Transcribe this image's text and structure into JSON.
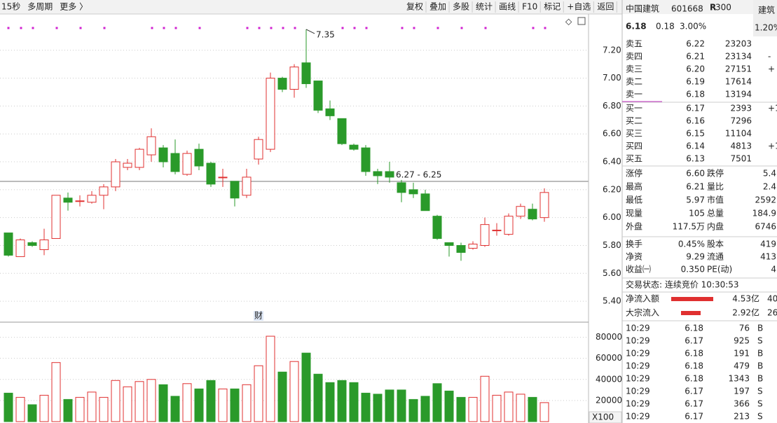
{
  "toolbar": {
    "left": [
      "15秒",
      "多周期",
      "更多 〉"
    ],
    "right": [
      "复权",
      "叠加",
      "多股",
      "统计",
      "画线",
      "F10",
      "标记",
      "+自选",
      "返回"
    ]
  },
  "chart": {
    "type": "candlestick",
    "high_label": 7.35,
    "range_label": "6.27 - 6.25",
    "marker": "财",
    "volume_unit": "X100",
    "ylim": [
      5.26,
      7.45
    ],
    "yticks": [
      {
        "value": 7.2,
        "label": "7.20"
      },
      {
        "value": 7.0,
        "label": "7.00"
      },
      {
        "value": 6.8,
        "label": "6.80"
      },
      {
        "value": 6.6,
        "label": "6.60"
      },
      {
        "value": 6.4,
        "label": "6.40"
      },
      {
        "value": 6.2,
        "label": "6.20"
      },
      {
        "value": 6.0,
        "label": "6.00"
      },
      {
        "value": 5.8,
        "label": "5.80"
      },
      {
        "value": 5.6,
        "label": "5.60"
      },
      {
        "value": 5.4,
        "label": "5.40"
      }
    ],
    "vlim": [
      0,
      93000
    ],
    "vticks": [
      80000,
      60000,
      40000,
      20000
    ],
    "candles": [
      [
        5.89,
        5.89,
        5.72,
        5.73,
        27000
      ],
      [
        5.72,
        5.85,
        5.72,
        5.84,
        23000
      ],
      [
        5.82,
        5.83,
        5.79,
        5.8,
        16000
      ],
      [
        5.77,
        5.92,
        5.73,
        5.84,
        25000
      ],
      [
        5.85,
        6.16,
        5.85,
        6.16,
        56000
      ],
      [
        6.14,
        6.18,
        6.05,
        6.11,
        21000
      ],
      [
        6.12,
        6.16,
        6.08,
        6.12,
        23000
      ],
      [
        6.11,
        6.19,
        6.1,
        6.16,
        28000
      ],
      [
        6.16,
        6.24,
        6.06,
        6.22,
        23000
      ],
      [
        6.22,
        6.42,
        6.19,
        6.4,
        39000
      ],
      [
        6.36,
        6.42,
        6.34,
        6.39,
        33000
      ],
      [
        6.36,
        6.5,
        6.34,
        6.49,
        38000
      ],
      [
        6.45,
        6.64,
        6.4,
        6.58,
        40000
      ],
      [
        6.5,
        6.52,
        6.36,
        6.4,
        35000
      ],
      [
        6.46,
        6.56,
        6.31,
        6.33,
        24000
      ],
      [
        6.31,
        6.48,
        6.3,
        6.46,
        36000
      ],
      [
        6.49,
        6.53,
        6.34,
        6.37,
        31000
      ],
      [
        6.39,
        6.4,
        6.22,
        6.24,
        39000
      ],
      [
        6.29,
        6.35,
        6.22,
        6.29,
        31000
      ],
      [
        6.26,
        6.26,
        6.08,
        6.14,
        31000
      ],
      [
        6.16,
        6.35,
        6.14,
        6.29,
        35000
      ],
      [
        6.42,
        6.58,
        6.38,
        6.56,
        53000
      ],
      [
        6.49,
        7.04,
        6.47,
        7.0,
        81000
      ],
      [
        7.0,
        7.01,
        6.9,
        6.92,
        47000
      ],
      [
        6.92,
        7.1,
        6.86,
        7.08,
        57000
      ],
      [
        7.11,
        7.35,
        6.93,
        6.96,
        65000
      ],
      [
        6.98,
        6.98,
        6.75,
        6.77,
        45000
      ],
      [
        6.78,
        6.84,
        6.7,
        6.73,
        37000
      ],
      [
        6.71,
        6.71,
        6.52,
        6.53,
        39000
      ],
      [
        6.52,
        6.53,
        6.48,
        6.49,
        37000
      ],
      [
        6.5,
        6.52,
        6.3,
        6.33,
        27000
      ],
      [
        6.33,
        6.35,
        6.24,
        6.3,
        26000
      ],
      [
        6.33,
        6.4,
        6.25,
        6.29,
        30000
      ],
      [
        6.25,
        6.27,
        6.11,
        6.18,
        30000
      ],
      [
        6.2,
        6.25,
        6.14,
        6.17,
        21000
      ],
      [
        6.17,
        6.2,
        6.05,
        6.05,
        24000
      ],
      [
        6.01,
        6.02,
        5.84,
        5.85,
        36000
      ],
      [
        5.82,
        5.82,
        5.72,
        5.8,
        29000
      ],
      [
        5.8,
        5.82,
        5.69,
        5.75,
        23000
      ],
      [
        5.78,
        5.83,
        5.77,
        5.81,
        23000
      ],
      [
        5.8,
        6.0,
        5.79,
        5.95,
        43000
      ],
      [
        5.91,
        5.96,
        5.87,
        5.91,
        25000
      ],
      [
        5.88,
        6.03,
        5.87,
        6.01,
        28000
      ],
      [
        6.01,
        6.1,
        5.99,
        6.08,
        26000
      ],
      [
        6.06,
        6.1,
        5.98,
        5.99,
        23000
      ],
      [
        6.0,
        6.21,
        5.97,
        6.18,
        18000
      ]
    ]
  },
  "quote": {
    "name": "中国建筑",
    "code": "601668",
    "badge": "R",
    "badge_num": "300",
    "price": "6.18",
    "change": "0.18",
    "pct": "3.00%",
    "side_name": "建筑",
    "side_pct": "1.20%"
  },
  "orderbook": [
    [
      "卖五",
      "6.22",
      "23203",
      ""
    ],
    [
      "卖四",
      "6.21",
      "23134",
      "-"
    ],
    [
      "卖三",
      "6.20",
      "27151",
      "+"
    ],
    [
      "卖二",
      "6.19",
      "17614",
      ""
    ],
    [
      "卖一",
      "6.18",
      "13194",
      ""
    ],
    [
      "买一",
      "6.17",
      "2393",
      "+1"
    ],
    [
      "买二",
      "6.16",
      "7296",
      ""
    ],
    [
      "买三",
      "6.15",
      "11104",
      ""
    ],
    [
      "买四",
      "6.14",
      "4813",
      "+1"
    ],
    [
      "买五",
      "6.13",
      "7501",
      ""
    ]
  ],
  "stats": [
    [
      "涨停",
      "6.60",
      "跌停",
      "5.4"
    ],
    [
      "最高",
      "6.21",
      "量比",
      "2.4"
    ],
    [
      "最低",
      "5.97",
      "市值",
      "2592"
    ],
    [
      "现量",
      "105",
      "总量",
      "184.9"
    ],
    [
      "外盘",
      "117.5万",
      "内盘",
      "6746"
    ],
    [
      "换手",
      "0.45%",
      "股本",
      "419"
    ],
    [
      "净资",
      "9.29",
      "流通",
      "413"
    ],
    [
      "收益㈠",
      "0.350",
      "PE(动)",
      "4"
    ]
  ],
  "status": "交易状态: 连续竞价 10:30:53",
  "flows": [
    [
      "净流入额",
      "4.53亿",
      "40"
    ],
    [
      "大宗流入",
      "2.92亿",
      "26"
    ]
  ],
  "ticks": [
    [
      "10:29",
      "6.18",
      "76",
      "B"
    ],
    [
      "10:29",
      "6.17",
      "925",
      "S"
    ],
    [
      "10:29",
      "6.18",
      "191",
      "B"
    ],
    [
      "10:29",
      "6.18",
      "479",
      "B"
    ],
    [
      "10:29",
      "6.18",
      "1343",
      "B"
    ],
    [
      "10:29",
      "6.17",
      "197",
      "S"
    ],
    [
      "10:29",
      "6.17",
      "366",
      "S"
    ],
    [
      "10:29",
      "6.17",
      "213",
      "S"
    ]
  ]
}
